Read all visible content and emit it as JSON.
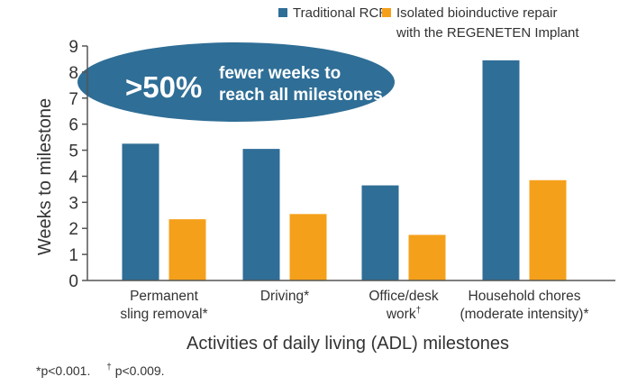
{
  "chart_data": {
    "type": "bar",
    "title": "",
    "xlabel": "Activities of daily living (ADL) milestones",
    "ylabel": "Weeks to milestone",
    "ylim": [
      0,
      9
    ],
    "yticks": [
      0,
      1,
      2,
      3,
      4,
      5,
      6,
      7,
      8,
      9
    ],
    "grid": false,
    "legend_position": "top-right",
    "categories": [
      {
        "line1": "Permanent",
        "line2": "sling removal*",
        "sup": ""
      },
      {
        "line1": "Driving*",
        "line2": "",
        "sup": ""
      },
      {
        "line1": "Office/desk",
        "line2": "work",
        "sup": "†"
      },
      {
        "line1": "Household chores",
        "line2": "(moderate intensity)*",
        "sup": ""
      }
    ],
    "series": [
      {
        "name": "Traditional RCR",
        "color": "#2f6e96",
        "values": [
          5.25,
          5.05,
          3.65,
          8.45
        ]
      },
      {
        "name_line1": "Isolated bioinductive repair",
        "name_line2": "with the REGENETEN Implant",
        "color": "#f5a01a",
        "values": [
          2.35,
          2.55,
          1.75,
          3.85
        ]
      }
    ],
    "callout": {
      "big": ">50%",
      "line1": "fewer weeks to",
      "line2": "reach all milestones",
      "color": "#2f6e96"
    },
    "footnote": {
      "part1": "*p<0.001.",
      "sup": "†",
      "part2": "p<0.009."
    },
    "axis_color": "#555555"
  }
}
